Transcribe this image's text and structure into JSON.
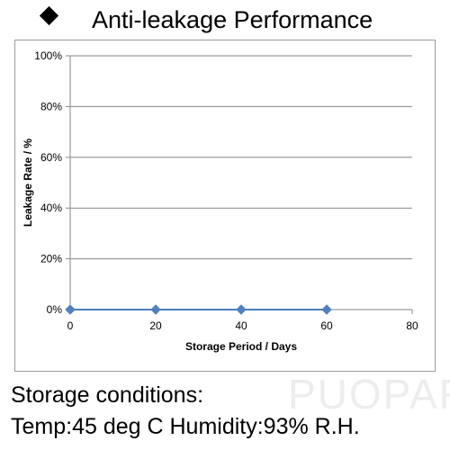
{
  "header": {
    "bullet_icon": "black-diamond-icon",
    "title": "Anti-leakage Performance"
  },
  "conditions": {
    "line1": "Storage conditions:",
    "line2": "Temp:45 deg C   Humidity:93% R.H."
  },
  "watermark": "PUOPART.RU",
  "chart_data": {
    "type": "line",
    "title": "",
    "xlabel": "Storage Period / Days",
    "ylabel": "Leakage Rate / %",
    "xlim": [
      0,
      80
    ],
    "ylim": [
      0,
      100
    ],
    "x_ticks": [
      "0",
      "20",
      "40",
      "60",
      "80"
    ],
    "y_ticks": [
      "0%",
      "20%",
      "40%",
      "60%",
      "80%",
      "100%"
    ],
    "grid": "horizontal",
    "legend": "none",
    "series": [
      {
        "color": "#4a7ebb",
        "marker": "diamond",
        "marker_color": "#4f81bd",
        "x": [
          0,
          20,
          40,
          60
        ],
        "y": [
          0,
          0,
          0,
          0
        ]
      }
    ],
    "colors": {
      "grid": "#868686",
      "axis": "#868686"
    }
  }
}
